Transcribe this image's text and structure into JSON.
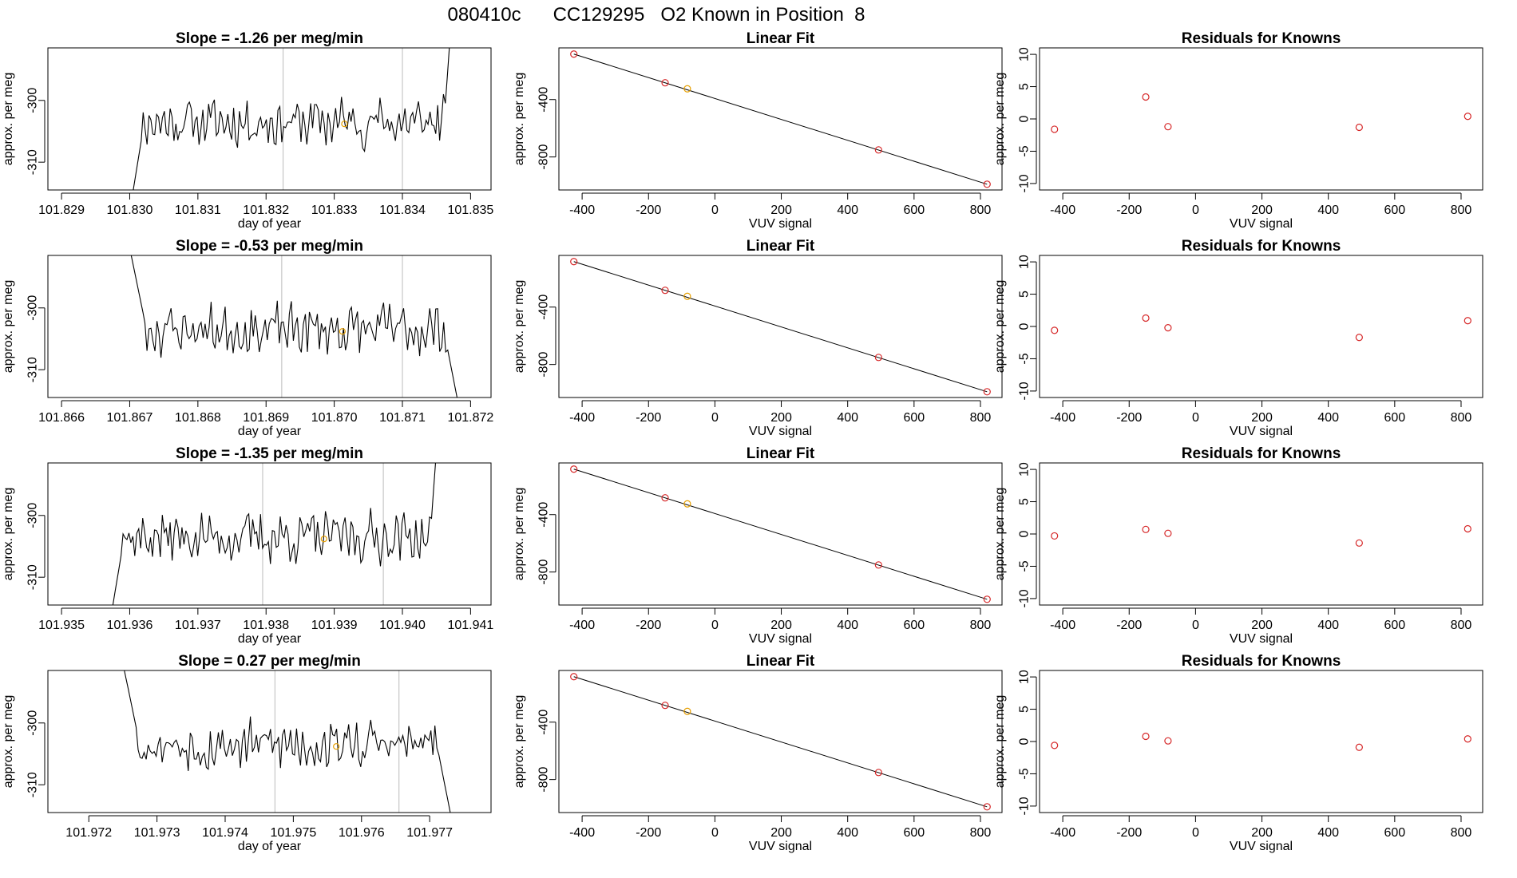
{
  "page_title": "080410c      CC129295   O2 Known in Position  8",
  "colors": {
    "trace": "#000000",
    "known_point": "#e69f00",
    "fit_point": "#d62728",
    "gridline": "#bbbbbb"
  },
  "chart_data": [
    {
      "type": "line",
      "row": 1,
      "panel": "time-series",
      "title": "Slope =  -1.26  per meg/min",
      "xlabel": "day of year",
      "ylabel": "approx. per meg",
      "xlim": [
        101.8288,
        101.8353
      ],
      "ylim": [
        -314.5,
        -291.5
      ],
      "xticks": [
        "101.829",
        "101.830",
        "101.831",
        "101.832",
        "101.833",
        "101.834",
        "101.835"
      ],
      "yticks": [
        "-300",
        "-310"
      ],
      "trace_start": 101.83,
      "trace_end": 101.8348,
      "trace_seed": 11,
      "vlines": [
        101.83225,
        101.834
      ],
      "marker": {
        "x": 101.83315,
        "y": -303.8
      }
    },
    {
      "type": "scatter",
      "row": 1,
      "panel": "linear-fit",
      "title": "Linear Fit",
      "xlabel": "VUV signal",
      "ylabel": "approx. per meg",
      "xlim": [
        -470,
        865
      ],
      "ylim": [
        -1030,
        -40
      ],
      "xticks": [
        "-400",
        "-200",
        "0",
        "200",
        "400",
        "600",
        "800"
      ],
      "yticks": [
        "-400",
        "-800"
      ],
      "fit_line": [
        [
          -425,
          -83
        ],
        [
          820,
          -990
        ]
      ],
      "points": [
        {
          "x": -425,
          "y": -83,
          "kind": "fit"
        },
        {
          "x": -150,
          "y": -283,
          "kind": "fit"
        },
        {
          "x": -83,
          "y": -325,
          "kind": "known"
        },
        {
          "x": 493,
          "y": -751,
          "kind": "fit"
        },
        {
          "x": 820,
          "y": -990,
          "kind": "fit"
        }
      ]
    },
    {
      "type": "scatter",
      "row": 1,
      "panel": "residuals",
      "title": "Residuals for Knowns",
      "xlabel": "VUV signal",
      "ylabel": "approx. per meg",
      "xlim": [
        -470,
        865
      ],
      "ylim": [
        -11,
        11
      ],
      "xticks": [
        "-400",
        "-200",
        "0",
        "200",
        "400",
        "600",
        "800"
      ],
      "yticks": [
        "10",
        "5",
        "0",
        "-5",
        "-10"
      ],
      "points": [
        {
          "x": -425,
          "y": -1.6
        },
        {
          "x": -150,
          "y": 3.4
        },
        {
          "x": -83,
          "y": -1.2
        },
        {
          "x": 493,
          "y": -1.3
        },
        {
          "x": 820,
          "y": 0.4
        }
      ]
    },
    {
      "type": "line",
      "row": 2,
      "panel": "time-series",
      "title": "Slope =  -0.53  per meg/min",
      "xlabel": "day of year",
      "ylabel": "approx. per meg",
      "xlim": [
        101.8658,
        101.8723
      ],
      "ylim": [
        -314.5,
        -291.5
      ],
      "xticks": [
        "101.866",
        "101.867",
        "101.868",
        "101.869",
        "101.870",
        "101.871",
        "101.872"
      ],
      "yticks": [
        "-300",
        "-310"
      ],
      "trace_start": 101.8669,
      "trace_end": 101.8719,
      "trace_seed": 23,
      "vlines": [
        101.86923,
        101.871
      ],
      "marker": {
        "x": 101.87012,
        "y": -303.8
      }
    },
    {
      "type": "scatter",
      "row": 2,
      "panel": "linear-fit",
      "title": "Linear Fit",
      "xlabel": "VUV signal",
      "ylabel": "approx. per meg",
      "xlim": [
        -470,
        865
      ],
      "ylim": [
        -1030,
        -40
      ],
      "xticks": [
        "-400",
        "-200",
        "0",
        "200",
        "400",
        "600",
        "800"
      ],
      "yticks": [
        "-400",
        "-800"
      ],
      "fit_line": [
        [
          -425,
          -83
        ],
        [
          820,
          -990
        ]
      ],
      "points": [
        {
          "x": -425,
          "y": -83,
          "kind": "fit"
        },
        {
          "x": -150,
          "y": -283,
          "kind": "fit"
        },
        {
          "x": -83,
          "y": -325,
          "kind": "known"
        },
        {
          "x": 493,
          "y": -751,
          "kind": "fit"
        },
        {
          "x": 820,
          "y": -990,
          "kind": "fit"
        }
      ]
    },
    {
      "type": "scatter",
      "row": 2,
      "panel": "residuals",
      "title": "Residuals for Knowns",
      "xlabel": "VUV signal",
      "ylabel": "approx. per meg",
      "xlim": [
        -470,
        865
      ],
      "ylim": [
        -11,
        11
      ],
      "xticks": [
        "-400",
        "-200",
        "0",
        "200",
        "400",
        "600",
        "800"
      ],
      "yticks": [
        "10",
        "5",
        "0",
        "-5",
        "-10"
      ],
      "points": [
        {
          "x": -425,
          "y": -0.6
        },
        {
          "x": -150,
          "y": 1.3
        },
        {
          "x": -83,
          "y": -0.2
        },
        {
          "x": 493,
          "y": -1.7
        },
        {
          "x": 820,
          "y": 0.9
        }
      ]
    },
    {
      "type": "line",
      "row": 3,
      "panel": "time-series",
      "title": "Slope =  -1.35  per meg/min",
      "xlabel": "day of year",
      "ylabel": "approx. per meg",
      "xlim": [
        101.9348,
        101.9413
      ],
      "ylim": [
        -314.5,
        -291.5
      ],
      "xticks": [
        "101.935",
        "101.936",
        "101.937",
        "101.938",
        "101.939",
        "101.940",
        "101.941"
      ],
      "yticks": [
        "-300",
        "-310"
      ],
      "trace_start": 101.9357,
      "trace_end": 101.9406,
      "trace_seed": 37,
      "vlines": [
        101.93795,
        101.93972
      ],
      "marker": {
        "x": 101.93885,
        "y": -303.8
      }
    },
    {
      "type": "scatter",
      "row": 3,
      "panel": "linear-fit",
      "title": "Linear Fit",
      "xlabel": "VUV signal",
      "ylabel": "approx. per meg",
      "xlim": [
        -470,
        865
      ],
      "ylim": [
        -1030,
        -40
      ],
      "xticks": [
        "-400",
        "-200",
        "0",
        "200",
        "400",
        "600",
        "800"
      ],
      "yticks": [
        "-400",
        "-800"
      ],
      "fit_line": [
        [
          -425,
          -83
        ],
        [
          820,
          -990
        ]
      ],
      "points": [
        {
          "x": -425,
          "y": -83,
          "kind": "fit"
        },
        {
          "x": -150,
          "y": -283,
          "kind": "fit"
        },
        {
          "x": -83,
          "y": -325,
          "kind": "known"
        },
        {
          "x": 493,
          "y": -751,
          "kind": "fit"
        },
        {
          "x": 820,
          "y": -990,
          "kind": "fit"
        }
      ]
    },
    {
      "type": "scatter",
      "row": 3,
      "panel": "residuals",
      "title": "Residuals for Knowns",
      "xlabel": "VUV signal",
      "ylabel": "approx. per meg",
      "xlim": [
        -470,
        865
      ],
      "ylim": [
        -11,
        11
      ],
      "xticks": [
        "-400",
        "-200",
        "0",
        "200",
        "400",
        "600",
        "800"
      ],
      "yticks": [
        "10",
        "5",
        "0",
        "-5",
        "-10"
      ],
      "points": [
        {
          "x": -425,
          "y": -0.3
        },
        {
          "x": -150,
          "y": 0.7
        },
        {
          "x": -83,
          "y": 0.1
        },
        {
          "x": 493,
          "y": -1.4
        },
        {
          "x": 820,
          "y": 0.8
        }
      ]
    },
    {
      "type": "line",
      "row": 4,
      "panel": "time-series",
      "title": "Slope =  0.27  per meg/min",
      "xlabel": "day of year",
      "ylabel": "approx. per meg",
      "xlim": [
        101.9714,
        101.9779
      ],
      "ylim": [
        -314.5,
        -291.5
      ],
      "xticks": [
        "101.972",
        "101.973",
        "101.974",
        "101.975",
        "101.976",
        "101.977"
      ],
      "yticks": [
        "-300",
        "-310"
      ],
      "trace_start": 101.9724,
      "trace_end": 101.9774,
      "trace_seed": 53,
      "vlines": [
        101.97473,
        101.97655
      ],
      "marker": {
        "x": 101.97563,
        "y": -303.8
      }
    },
    {
      "type": "scatter",
      "row": 4,
      "panel": "linear-fit",
      "title": "Linear Fit",
      "xlabel": "VUV signal",
      "ylabel": "approx. per meg",
      "xlim": [
        -470,
        865
      ],
      "ylim": [
        -1030,
        -40
      ],
      "xticks": [
        "-400",
        "-200",
        "0",
        "200",
        "400",
        "600",
        "800"
      ],
      "yticks": [
        "-400",
        "-800"
      ],
      "fit_line": [
        [
          -425,
          -83
        ],
        [
          820,
          -990
        ]
      ],
      "points": [
        {
          "x": -425,
          "y": -83,
          "kind": "fit"
        },
        {
          "x": -150,
          "y": -283,
          "kind": "fit"
        },
        {
          "x": -83,
          "y": -325,
          "kind": "known"
        },
        {
          "x": 493,
          "y": -751,
          "kind": "fit"
        },
        {
          "x": 820,
          "y": -990,
          "kind": "fit"
        }
      ]
    },
    {
      "type": "scatter",
      "row": 4,
      "panel": "residuals",
      "title": "Residuals for Knowns",
      "xlabel": "VUV signal",
      "ylabel": "approx. per meg",
      "xlim": [
        -470,
        865
      ],
      "ylim": [
        -11,
        11
      ],
      "xticks": [
        "-400",
        "-200",
        "0",
        "200",
        "400",
        "600",
        "800"
      ],
      "yticks": [
        "10",
        "5",
        "0",
        "-5",
        "-10"
      ],
      "points": [
        {
          "x": -425,
          "y": -0.6
        },
        {
          "x": -150,
          "y": 0.8
        },
        {
          "x": -83,
          "y": 0.1
        },
        {
          "x": 493,
          "y": -0.9
        },
        {
          "x": 820,
          "y": 0.4
        }
      ]
    }
  ]
}
